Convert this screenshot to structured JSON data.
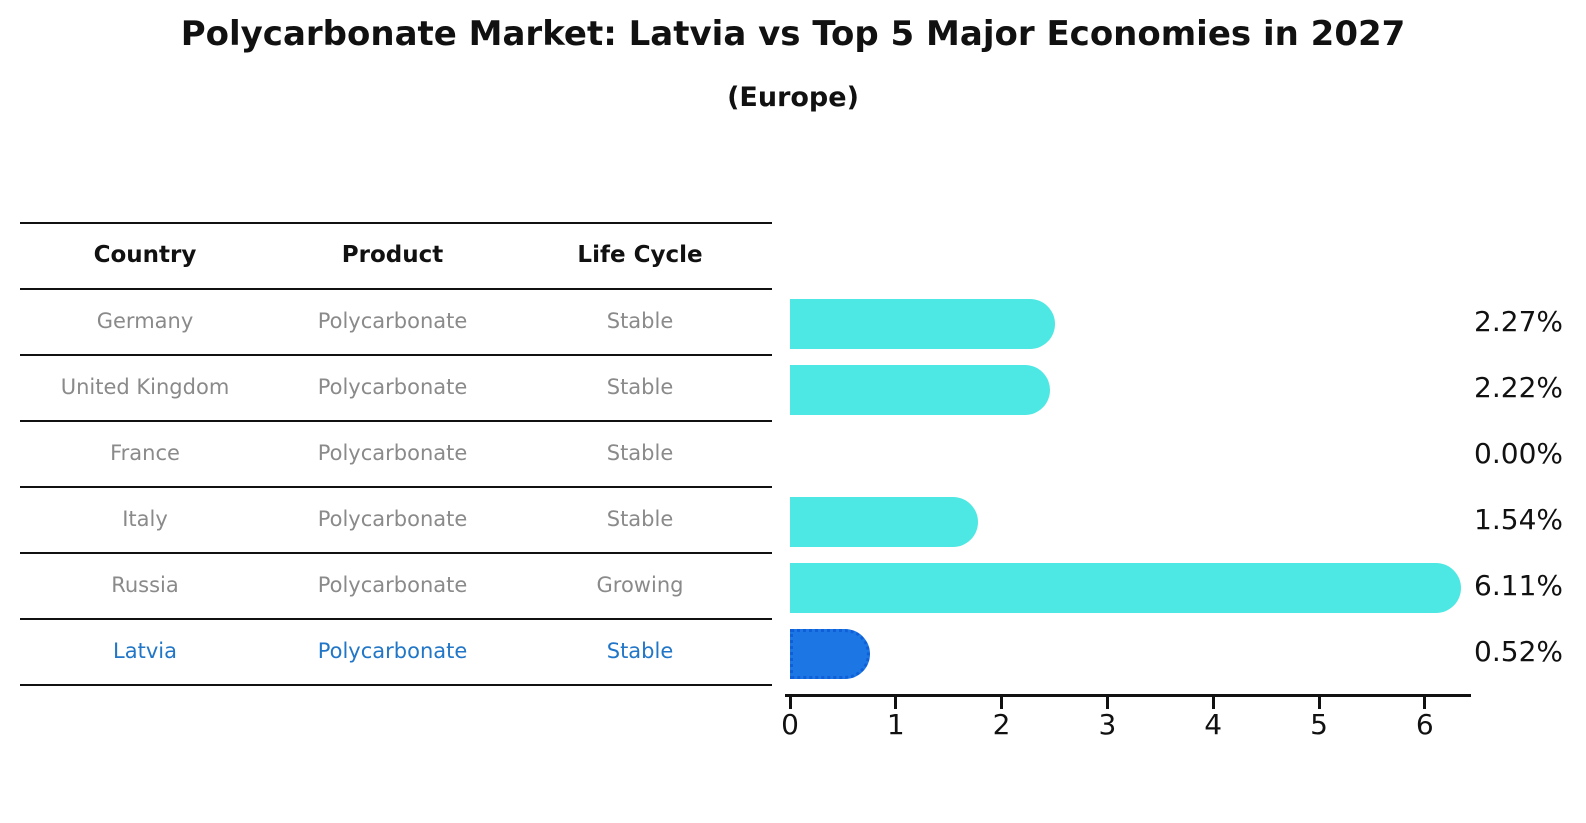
{
  "title": "Polycarbonate Market: Latvia vs Top 5 Major Economies in 2027",
  "subtitle": "(Europe)",
  "table": {
    "headers": [
      "Country",
      "Product",
      "Life Cycle"
    ],
    "rows": [
      {
        "country": "Germany",
        "product": "Polycarbonate",
        "life_cycle": "Stable",
        "highlight": false
      },
      {
        "country": "United Kingdom",
        "product": "Polycarbonate",
        "life_cycle": "Stable",
        "highlight": false
      },
      {
        "country": "France",
        "product": "Polycarbonate",
        "life_cycle": "Stable",
        "highlight": false
      },
      {
        "country": "Italy",
        "product": "Polycarbonate",
        "life_cycle": "Stable",
        "highlight": false
      },
      {
        "country": "Russia",
        "product": "Polycarbonate",
        "life_cycle": "Growing",
        "highlight": false
      },
      {
        "country": "Latvia",
        "product": "Polycarbonate",
        "life_cycle": "Stable",
        "highlight": true
      }
    ]
  },
  "chart_data": {
    "type": "bar",
    "orientation": "horizontal",
    "title": "Polycarbonate Market: Latvia vs Top 5 Major Economies in 2027",
    "subtitle": "(Europe)",
    "categories": [
      "Germany",
      "United Kingdom",
      "France",
      "Italy",
      "Russia",
      "Latvia"
    ],
    "values": [
      2.27,
      2.22,
      0.0,
      1.54,
      6.11,
      0.52
    ],
    "value_labels": [
      "2.27%",
      "2.22%",
      "0.00%",
      "1.54%",
      "6.11%",
      "0.52%"
    ],
    "x_ticks": [
      0,
      1,
      2,
      3,
      4,
      5,
      6
    ],
    "xlim": [
      0,
      6.5
    ],
    "grid": false,
    "legend": "none",
    "bar_color": "#4DE8E3",
    "highlight_color": "#1C76E4",
    "highlight_border_color": "#0E5FD8",
    "highlight_text_color": "#2176C7",
    "highlight_index": 5
  }
}
